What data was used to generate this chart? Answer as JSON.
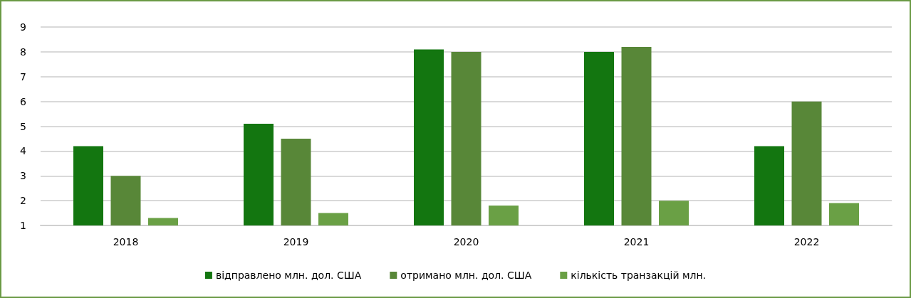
{
  "chart_data": {
    "type": "bar",
    "categories": [
      "2018",
      "2019",
      "2020",
      "2021",
      "2022"
    ],
    "series": [
      {
        "name": "відправлено млн. дол. США",
        "color": "#137610",
        "values": [
          4.2,
          5.1,
          8.1,
          8.0,
          4.2
        ]
      },
      {
        "name": "отримано млн. дол. США",
        "color": "#588738",
        "values": [
          3.0,
          4.5,
          8.0,
          8.2,
          6.0
        ]
      },
      {
        "name": "кількість транзакцій млн.",
        "color": "#6aa045",
        "values": [
          1.3,
          1.5,
          1.8,
          2.0,
          1.9
        ]
      }
    ],
    "ylim": [
      1,
      9
    ],
    "yticks": [
      1,
      2,
      3,
      4,
      5,
      6,
      7,
      8,
      9
    ],
    "grid": "y",
    "legend": "bottom"
  }
}
